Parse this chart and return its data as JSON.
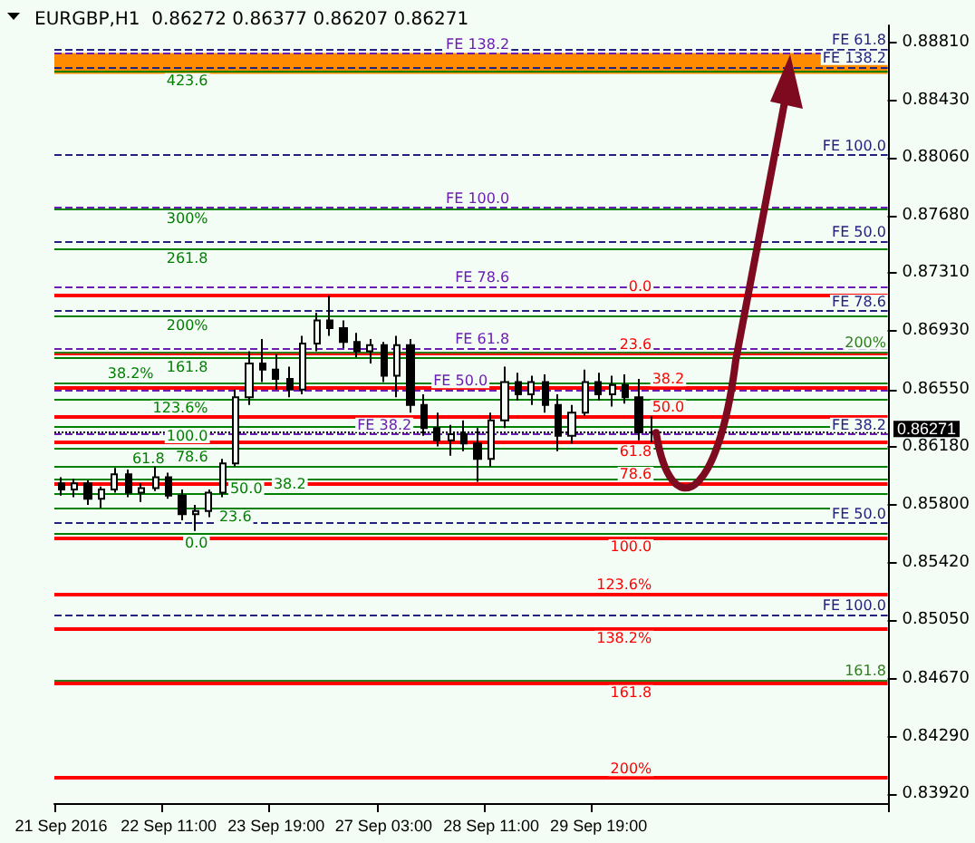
{
  "chart_data": {
    "type": "candlestick",
    "title": "EURGBP,H1  0.86272 0.86377 0.86207 0.86271",
    "categories": [
      "21 Sep 2016",
      null,
      null,
      null,
      null,
      null,
      null,
      null,
      "22 Sep 11:00",
      null,
      null,
      null,
      null,
      null,
      null,
      null,
      "23 Sep 19:00",
      null,
      null,
      null,
      null,
      null,
      null,
      null,
      "27 Sep 03:00",
      null,
      null,
      null,
      null,
      null,
      null,
      null,
      "28 Sep 11:00",
      null,
      null,
      null,
      null,
      null,
      null,
      null,
      "29 Sep 19:00",
      null,
      null,
      null,
      null,
      null,
      null,
      null,
      null,
      null,
      null,
      null,
      null,
      null,
      null,
      null,
      null,
      null,
      null,
      null,
      null,
      null
    ],
    "color": "#000000",
    "ohlc": [
      [
        0.8594,
        0.8598,
        0.8586,
        0.859
      ],
      [
        0.859,
        0.8597,
        0.8585,
        0.8594
      ],
      [
        0.8594,
        0.8596,
        0.858,
        0.8584
      ],
      [
        0.8584,
        0.8592,
        0.8578,
        0.859
      ],
      [
        0.859,
        0.8604,
        0.8588,
        0.86
      ],
      [
        0.86,
        0.8603,
        0.8585,
        0.8588
      ],
      [
        0.8588,
        0.8594,
        0.8582,
        0.8591
      ],
      [
        0.8591,
        0.8605,
        0.8589,
        0.8598
      ],
      [
        0.8598,
        0.8601,
        0.8584,
        0.8586
      ],
      [
        0.8586,
        0.859,
        0.857,
        0.8574
      ],
      [
        0.8574,
        0.858,
        0.8563,
        0.8576
      ],
      [
        0.8576,
        0.859,
        0.8572,
        0.8588
      ],
      [
        0.8588,
        0.861,
        0.8585,
        0.8607
      ],
      [
        0.8607,
        0.8655,
        0.8605,
        0.865
      ],
      [
        0.865,
        0.868,
        0.8645,
        0.8672
      ],
      [
        0.8672,
        0.8688,
        0.866,
        0.8668
      ],
      [
        0.8668,
        0.8678,
        0.8655,
        0.8662
      ],
      [
        0.8662,
        0.867,
        0.865,
        0.8655
      ],
      [
        0.8655,
        0.869,
        0.8652,
        0.8685
      ],
      [
        0.8685,
        0.8705,
        0.868,
        0.87
      ],
      [
        0.87,
        0.8716,
        0.869,
        0.8695
      ],
      [
        0.8695,
        0.87,
        0.8682,
        0.8686
      ],
      [
        0.8686,
        0.8692,
        0.8676,
        0.868
      ],
      [
        0.868,
        0.8688,
        0.8672,
        0.8684
      ],
      [
        0.8684,
        0.8686,
        0.866,
        0.8664
      ],
      [
        0.8664,
        0.869,
        0.865,
        0.8684
      ],
      [
        0.8684,
        0.8688,
        0.864,
        0.8645
      ],
      [
        0.8645,
        0.8652,
        0.8625,
        0.863
      ],
      [
        0.863,
        0.864,
        0.8618,
        0.8622
      ],
      [
        0.8622,
        0.8632,
        0.8612,
        0.8626
      ],
      [
        0.8626,
        0.8635,
        0.8615,
        0.862
      ],
      [
        0.862,
        0.863,
        0.8595,
        0.861
      ],
      [
        0.861,
        0.864,
        0.8605,
        0.8635
      ],
      [
        0.8635,
        0.867,
        0.863,
        0.866
      ],
      [
        0.866,
        0.8666,
        0.8648,
        0.8652
      ],
      [
        0.8652,
        0.8664,
        0.8645,
        0.866
      ],
      [
        0.866,
        0.8665,
        0.864,
        0.8645
      ],
      [
        0.8645,
        0.8652,
        0.8615,
        0.8625
      ],
      [
        0.8625,
        0.8645,
        0.862,
        0.864
      ],
      [
        0.864,
        0.8668,
        0.8638,
        0.866
      ],
      [
        0.866,
        0.8666,
        0.8648,
        0.8652
      ],
      [
        0.8652,
        0.8664,
        0.8644,
        0.8658
      ],
      [
        0.8658,
        0.8665,
        0.8646,
        0.865
      ],
      [
        0.865,
        0.8662,
        0.8622,
        0.86272
      ],
      [
        0.86272,
        0.86377,
        0.86207,
        0.86271
      ],
      null,
      null,
      null,
      null,
      null,
      null,
      null,
      null,
      null,
      null,
      null,
      null,
      null,
      null,
      null,
      null,
      null
    ],
    "ylim": [
      0.8386,
      0.8892
    ],
    "yticks": [
      {
        "value": 0.8881,
        "label": "0.88810"
      },
      {
        "value": 0.8843,
        "label": "0.88430"
      },
      {
        "value": 0.8806,
        "label": "0.88060"
      },
      {
        "value": 0.8768,
        "label": "0.87680"
      },
      {
        "value": 0.8731,
        "label": "0.87310"
      },
      {
        "value": 0.8693,
        "label": "0.86930"
      },
      {
        "value": 0.8655,
        "label": "0.86550"
      },
      {
        "value": 0.8618,
        "label": "0.86180"
      },
      {
        "value": 0.858,
        "label": "0.85800"
      },
      {
        "value": 0.8542,
        "label": "0.85420"
      },
      {
        "value": 0.8505,
        "label": "0.85050"
      },
      {
        "value": 0.8467,
        "label": "0.84670"
      },
      {
        "value": 0.8429,
        "label": "0.84290"
      },
      {
        "value": 0.8392,
        "label": "0.83920"
      }
    ],
    "bands": [
      {
        "axis": "y",
        "from": 0.88604,
        "to": 0.8874,
        "color": "#ff8c00"
      }
    ],
    "ref_lines": [
      {
        "axis": "y",
        "value": 0.88764,
        "label": "FE 61.8",
        "color": "#23237e",
        "line_style": "dashed"
      },
      {
        "axis": "y",
        "value": 0.8865,
        "label": "FE 138.2",
        "color": "#23237e",
        "line_style": "dashed"
      },
      {
        "axis": "y",
        "value": 0.88079,
        "label": "FE 100.0",
        "color": "#23237e",
        "line_style": "dashed"
      },
      {
        "axis": "y",
        "value": 0.87519,
        "label": "FE 50.0",
        "color": "#23237e",
        "line_style": "dashed"
      },
      {
        "axis": "y",
        "value": 0.87062,
        "label": "FE 78.6",
        "color": "#23237e",
        "line_style": "dashed"
      },
      {
        "axis": "y",
        "value": 0.86262,
        "label": "FE 38.2",
        "color": "#23237e",
        "line_style": "dashed"
      },
      {
        "axis": "y",
        "value": 0.8568,
        "label": "FE 50.0",
        "color": "#23237e",
        "line_style": "dashed"
      },
      {
        "axis": "y",
        "value": 0.85085,
        "label": "FE 100.0",
        "color": "#23237e",
        "line_style": "dashed"
      },
      {
        "axis": "y",
        "value": 0.8874,
        "label": "FE 138.2",
        "color": "#6a1fb0",
        "line_style": "dashed"
      },
      {
        "axis": "y",
        "value": 0.87736,
        "label": "FE 100.0",
        "color": "#6a1fb0",
        "line_style": "dashed"
      },
      {
        "axis": "y",
        "value": 0.87222,
        "label": "FE 78.6",
        "color": "#6a1fb0",
        "line_style": "dashed"
      },
      {
        "axis": "y",
        "value": 0.86822,
        "label": "FE 61.8",
        "color": "#6a1fb0",
        "line_style": "dashed"
      },
      {
        "axis": "y",
        "value": 0.86548,
        "label": "FE 50.0",
        "color": "#6a1fb0",
        "line_style": "dashed"
      },
      {
        "axis": "y",
        "value": 0.86262,
        "label": "FE 38.2",
        "color": "#6a1fb0",
        "line_style": "dashed"
      },
      {
        "axis": "y",
        "value": 0.87165,
        "color": "#ff0000",
        "line_style": "solid"
      },
      {
        "axis": "y",
        "value": 0.86788,
        "color": "#ff0000",
        "line_style": "solid"
      },
      {
        "axis": "y",
        "value": 0.86559,
        "color": "#ff0000",
        "line_style": "solid"
      },
      {
        "axis": "y",
        "value": 0.86377,
        "color": "#ff0000",
        "line_style": "solid"
      },
      {
        "axis": "y",
        "value": 0.86205,
        "color": "#ff0000",
        "line_style": "solid"
      },
      {
        "axis": "y",
        "value": 0.85942,
        "color": "#ff0000",
        "line_style": "solid"
      },
      {
        "axis": "y",
        "value": 0.85588,
        "color": "#ff0000",
        "line_style": "solid"
      },
      {
        "axis": "y",
        "value": 0.85223,
        "color": "#ff0000",
        "line_style": "solid"
      },
      {
        "axis": "y",
        "value": 0.84994,
        "color": "#ff0000",
        "line_style": "solid"
      },
      {
        "axis": "y",
        "value": 0.8464,
        "color": "#ff0000",
        "line_style": "solid"
      },
      {
        "axis": "y",
        "value": 0.84023,
        "color": "#ff0000",
        "line_style": "solid"
      },
      {
        "axis": "y",
        "value": 0.8862,
        "color": "#008000",
        "line_style": "solid"
      },
      {
        "axis": "y",
        "value": 0.8772,
        "color": "#008000",
        "line_style": "solid"
      },
      {
        "axis": "y",
        "value": 0.87462,
        "color": "#008000",
        "line_style": "solid"
      },
      {
        "axis": "y",
        "value": 0.87028,
        "color": "#008000",
        "line_style": "solid"
      },
      {
        "axis": "y",
        "value": 0.86754,
        "color": "#008000",
        "line_style": "solid"
      },
      {
        "axis": "y",
        "value": 0.86594,
        "color": "#008000",
        "line_style": "solid"
      },
      {
        "axis": "y",
        "value": 0.86491,
        "color": "#008000",
        "line_style": "solid"
      },
      {
        "axis": "y",
        "value": 0.86308,
        "color": "#008000",
        "line_style": "solid"
      },
      {
        "axis": "y",
        "value": 0.8617,
        "color": "#008000",
        "line_style": "solid"
      },
      {
        "axis": "y",
        "value": 0.86045,
        "color": "#008000",
        "line_style": "solid"
      },
      {
        "axis": "y",
        "value": 0.85965,
        "color": "#008000",
        "line_style": "solid"
      },
      {
        "axis": "y",
        "value": 0.85874,
        "color": "#008000",
        "line_style": "solid"
      },
      {
        "axis": "y",
        "value": 0.85782,
        "color": "#008000",
        "line_style": "solid"
      },
      {
        "axis": "y",
        "value": 0.85611,
        "color": "#008000",
        "line_style": "solid"
      },
      {
        "axis": "y",
        "value": 0.86799,
        "color": "#2f7d1f",
        "line_style": "solid"
      },
      {
        "axis": "y",
        "value": 0.8466,
        "color": "#2f7d1f",
        "line_style": "solid"
      },
      {
        "axis": "y",
        "value": 0.86271,
        "label": "0.86271",
        "color": "#000000",
        "line_style": "dotted"
      }
    ],
    "annotations": [
      {
        "text": "0.0",
        "y": 0.87165
      },
      {
        "text": "23.6",
        "y": 0.86788
      },
      {
        "text": "38.2",
        "y": 0.86559
      },
      {
        "text": "50.0",
        "y": 0.86377
      },
      {
        "text": "61.8",
        "y": 0.86205
      },
      {
        "text": "78.6",
        "y": 0.85942
      },
      {
        "text": "100.0",
        "y": 0.85588
      },
      {
        "text": "123.6%",
        "y": 0.85223
      },
      {
        "text": "138.2%",
        "y": 0.84994
      },
      {
        "text": "161.8",
        "y": 0.8464
      },
      {
        "text": "200%",
        "y": 0.84023
      },
      {
        "text": "423.6",
        "y": 0.8862
      },
      {
        "text": "300%",
        "y": 0.8772
      },
      {
        "text": "261.8",
        "y": 0.87462
      },
      {
        "text": "200%",
        "y": 0.87028
      },
      {
        "text": "161.8",
        "y": 0.86754
      },
      {
        "text": "38.2%",
        "y": 0.86594
      },
      {
        "text": "123.6%",
        "y": 0.86491
      },
      {
        "text": "100.0",
        "y": 0.86308
      },
      {
        "text": "78.6",
        "y": 0.8617
      },
      {
        "text": "61.8",
        "y": 0.86045
      },
      {
        "text": "50.0",
        "y": 0.85965
      },
      {
        "text": "38.2",
        "y": 0.85874
      },
      {
        "text": "23.6",
        "y": 0.85782
      },
      {
        "text": "0.0",
        "y": 0.85611
      },
      {
        "text": "200%",
        "y": 0.86799
      },
      {
        "text": "161.8",
        "y": 0.8466
      }
    ]
  }
}
